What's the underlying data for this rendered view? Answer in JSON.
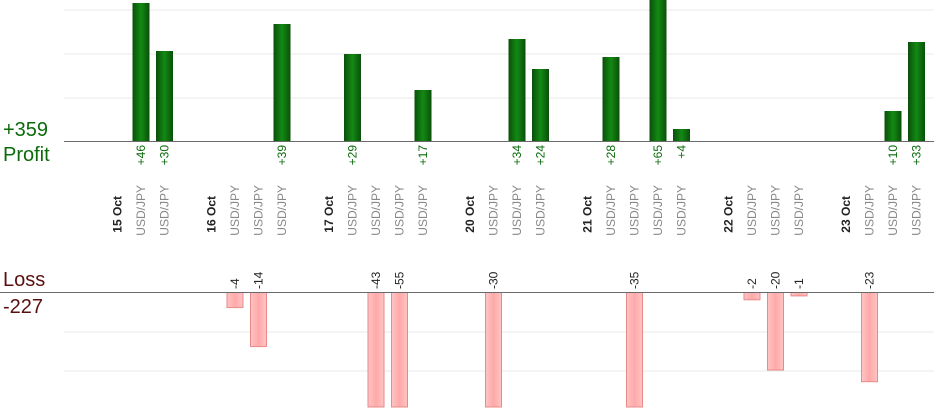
{
  "labels": {
    "profit_total": "+359",
    "profit_word": "Profit",
    "loss_word": "Loss",
    "loss_total": "-227"
  },
  "chart_data": {
    "type": "bar",
    "title": "",
    "xlabel": "",
    "ylabel": "",
    "colors": {
      "profit": "#0b6b0b",
      "loss": "#ffb3b3",
      "loss_border": "#e98a8a",
      "date": "#222222",
      "pair": "#888888"
    },
    "grid": true,
    "profit_axis_max": 40,
    "loss_axis_max": 30,
    "slots": [
      {
        "kind": "date",
        "label": "15 Oct"
      },
      {
        "kind": "trade",
        "label": "USD/JPY",
        "value": 46,
        "value_label": "+46"
      },
      {
        "kind": "trade",
        "label": "USD/JPY",
        "value": 30,
        "value_label": "+30"
      },
      {
        "kind": "gap"
      },
      {
        "kind": "date",
        "label": "16 Oct"
      },
      {
        "kind": "trade",
        "label": "USD/JPY",
        "value": -4,
        "value_label": "-4"
      },
      {
        "kind": "trade",
        "label": "USD/JPY",
        "value": -14,
        "value_label": "-14"
      },
      {
        "kind": "trade",
        "label": "USD/JPY",
        "value": 39,
        "value_label": "+39"
      },
      {
        "kind": "gap"
      },
      {
        "kind": "date",
        "label": "17 Oct"
      },
      {
        "kind": "trade",
        "label": "USD/JPY",
        "value": 29,
        "value_label": "+29"
      },
      {
        "kind": "trade",
        "label": "USD/JPY",
        "value": -43,
        "value_label": "-43"
      },
      {
        "kind": "trade",
        "label": "USD/JPY",
        "value": -55,
        "value_label": "-55"
      },
      {
        "kind": "trade",
        "label": "USD/JPY",
        "value": 17,
        "value_label": "+17"
      },
      {
        "kind": "gap"
      },
      {
        "kind": "date",
        "label": "20 Oct"
      },
      {
        "kind": "trade",
        "label": "USD/JPY",
        "value": -30,
        "value_label": "-30"
      },
      {
        "kind": "trade",
        "label": "USD/JPY",
        "value": 34,
        "value_label": "+34"
      },
      {
        "kind": "trade",
        "label": "USD/JPY",
        "value": 24,
        "value_label": "+24"
      },
      {
        "kind": "gap"
      },
      {
        "kind": "date",
        "label": "21 Oct"
      },
      {
        "kind": "trade",
        "label": "USD/JPY",
        "value": 28,
        "value_label": "+28"
      },
      {
        "kind": "trade",
        "label": "USD/JPY",
        "value": -35,
        "value_label": "-35"
      },
      {
        "kind": "trade",
        "label": "USD/JPY",
        "value": 65,
        "value_label": "+65"
      },
      {
        "kind": "trade",
        "label": "USD/JPY",
        "value": 4,
        "value_label": "+4"
      },
      {
        "kind": "gap"
      },
      {
        "kind": "date",
        "label": "22 Oct"
      },
      {
        "kind": "trade",
        "label": "USD/JPY",
        "value": -2,
        "value_label": "-2"
      },
      {
        "kind": "trade",
        "label": "USD/JPY",
        "value": -20,
        "value_label": "-20"
      },
      {
        "kind": "trade",
        "label": "USD/JPY",
        "value": -1,
        "value_label": "-1"
      },
      {
        "kind": "gap"
      },
      {
        "kind": "date",
        "label": "23 Oct"
      },
      {
        "kind": "trade",
        "label": "USD/JPY",
        "value": -23,
        "value_label": "-23"
      },
      {
        "kind": "trade",
        "label": "USD/JPY",
        "value": 10,
        "value_label": "+10"
      },
      {
        "kind": "trade",
        "label": "USD/JPY",
        "value": 33,
        "value_label": "+33"
      }
    ]
  }
}
